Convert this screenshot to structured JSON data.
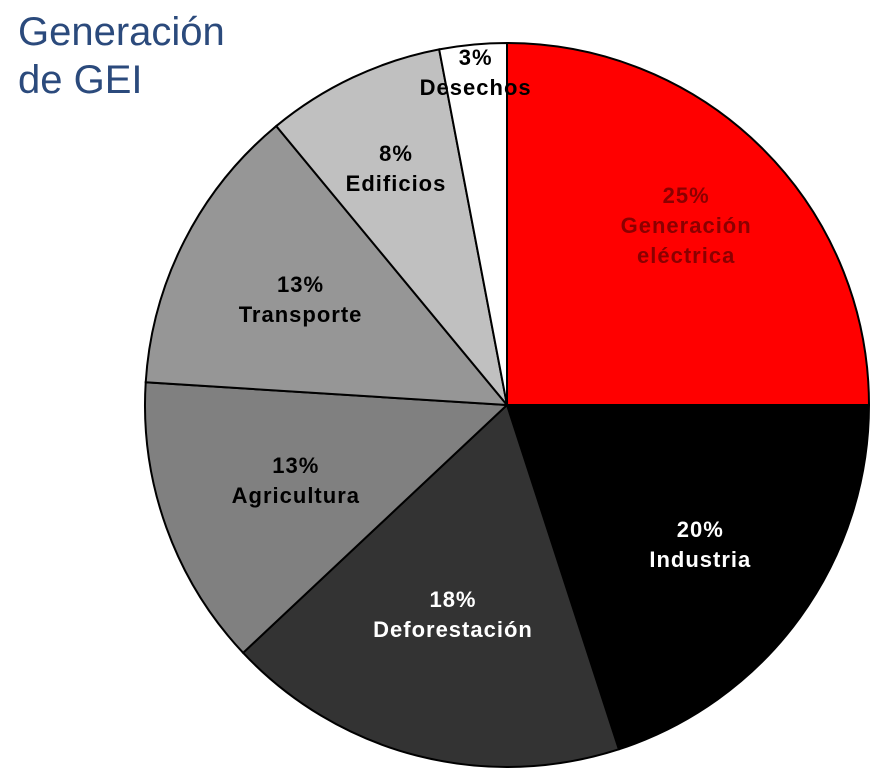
{
  "chart_data": {
    "type": "pie",
    "title": "Generación de GEI",
    "categories": [
      "Generación eléctrica",
      "Industria",
      "Deforestación",
      "Agricultura",
      "Transporte",
      "Edificios",
      "Desechos"
    ],
    "values": [
      25,
      20,
      18,
      13,
      13,
      8,
      3
    ],
    "value_labels": [
      "25%",
      "20%",
      "18%",
      "13%",
      "13%",
      "8%",
      "3%"
    ],
    "colors": [
      "#ff0000",
      "#000000",
      "#333333",
      "#808080",
      "#969696",
      "#c0c0c0",
      "#ffffff"
    ],
    "label_colors": [
      "#8b0000",
      "#ffffff",
      "#ffffff",
      "#000000",
      "#000000",
      "#000000",
      "#000000"
    ]
  }
}
